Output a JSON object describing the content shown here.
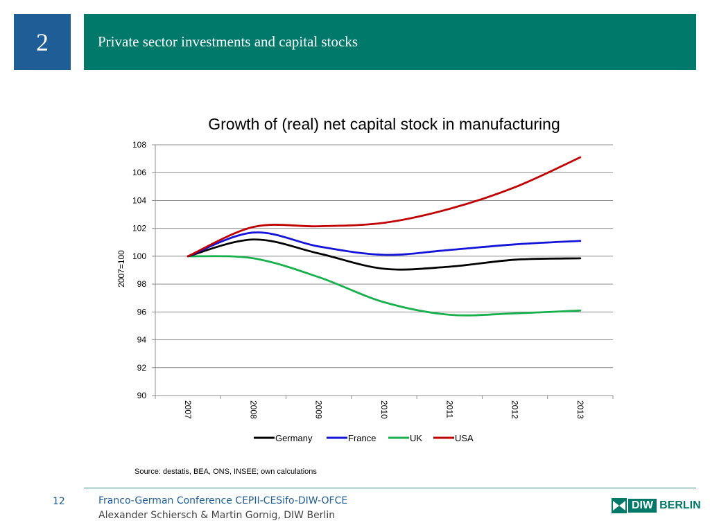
{
  "slide": {
    "section_number": "2",
    "title": "Private sector investments and capital stocks",
    "source": "Source:  destatis, BEA, ONS, INSEE; own calculations",
    "page_number": "12",
    "footer_line1": "Franco-German Conference CEPII-CESifo-DIW-OFCE",
    "footer_line2": "Alexander Schiersch & Martin Gornig, DIW Berlin",
    "logo_left": "DIW",
    "logo_right": "BERLIN"
  },
  "colors": {
    "section_box": "#1f5d97",
    "header_bar": "#00796b",
    "Germany": "#000000",
    "France": "#1414d8",
    "UK": "#17b04c",
    "USA": "#c00000"
  },
  "chart_data": {
    "type": "line",
    "title": "Growth of (real) net capital stock in manufacturing",
    "xlabel": "",
    "ylabel": "2007=100",
    "categories": [
      "2007",
      "2008",
      "2009",
      "2010",
      "2011",
      "2012",
      "2013"
    ],
    "ylim": [
      90,
      108
    ],
    "yticks": [
      90,
      92,
      94,
      96,
      98,
      100,
      102,
      104,
      106,
      108
    ],
    "grid": true,
    "legend": "bottom",
    "series": [
      {
        "name": "Germany",
        "values": [
          100.0,
          101.2,
          100.2,
          99.1,
          99.25,
          99.75,
          99.85
        ]
      },
      {
        "name": "France",
        "values": [
          100.0,
          101.7,
          100.7,
          100.1,
          100.45,
          100.85,
          101.1
        ]
      },
      {
        "name": "UK",
        "values": [
          100.0,
          99.85,
          98.5,
          96.7,
          95.8,
          95.9,
          96.1
        ]
      },
      {
        "name": "USA",
        "values": [
          100.0,
          102.1,
          102.15,
          102.4,
          103.4,
          104.95,
          107.1
        ]
      }
    ]
  }
}
